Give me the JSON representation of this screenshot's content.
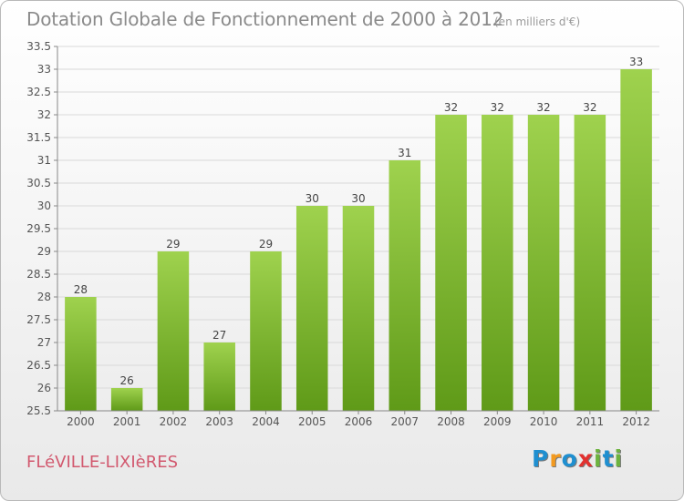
{
  "header": {
    "title": "Dotation Globale de Fonctionnement de 2000 à 2012",
    "subtitle": "(en milliers d'€)"
  },
  "footer": {
    "commune": "FLéVILLE-LIXIèRES",
    "logo_text": "Proxiti"
  },
  "colors": {
    "bar_top": "#9fd24e",
    "bar_bottom": "#5f9a18",
    "grid": "#d9d9d9",
    "logo_letters": [
      "#1f8fd0",
      "#f39a1f",
      "#1f8fd0",
      "#e2312f",
      "#6db33f",
      "#1f8fd0",
      "#6db33f"
    ]
  },
  "chart_data": {
    "type": "bar",
    "categories": [
      "2000",
      "2001",
      "2002",
      "2003",
      "2004",
      "2005",
      "2006",
      "2007",
      "2008",
      "2009",
      "2010",
      "2011",
      "2012"
    ],
    "values": [
      28,
      26,
      29,
      27,
      29,
      30,
      30,
      31,
      32,
      32,
      32,
      32,
      33
    ],
    "value_labels": [
      "28",
      "26",
      "29",
      "27",
      "29",
      "30",
      "30",
      "31",
      "32",
      "32",
      "32",
      "32",
      "33"
    ],
    "ylim": [
      25.5,
      33.5
    ],
    "yticks": [
      "25.5",
      "26",
      "26.5",
      "27",
      "27.5",
      "28",
      "28.5",
      "29",
      "29.5",
      "30",
      "30.5",
      "31",
      "31.5",
      "32",
      "32.5",
      "33",
      "33.5"
    ],
    "grid": true,
    "legend": "none"
  }
}
